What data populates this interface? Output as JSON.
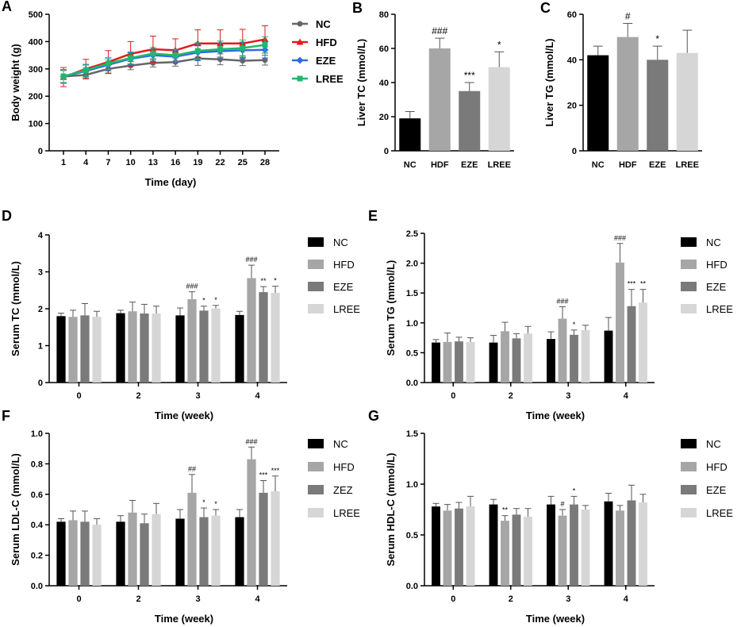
{
  "figure": {
    "panels": [
      "A",
      "B",
      "C",
      "D",
      "E",
      "F",
      "G"
    ]
  },
  "colors": {
    "NC": "#000000",
    "HFD": "#a6a6a6",
    "EZE": "#7a7a7a",
    "LREE": "#d6d6d6",
    "A_NC": "#666666",
    "A_HFD": "#e31a1c",
    "A_EZE": "#2e6be6",
    "A_LREE": "#1fb86b"
  },
  "chart_data": [
    {
      "id": "A",
      "type": "line",
      "panel_letter": "A",
      "xlabel": "Time (day)",
      "ylabel": "Body weight (g)",
      "x": [
        1,
        4,
        7,
        10,
        13,
        16,
        19,
        22,
        25,
        28
      ],
      "yticks": [
        0,
        100,
        200,
        300,
        400,
        500
      ],
      "ylim": [
        0,
        500
      ],
      "series": [
        {
          "name": "NC",
          "color": "#666666",
          "marker": "circle",
          "values": [
            272,
            278,
            300,
            312,
            322,
            325,
            338,
            335,
            330,
            332
          ],
          "errors": [
            22,
            15,
            15,
            15,
            15,
            15,
            25,
            20,
            18,
            18
          ]
        },
        {
          "name": "HFD",
          "color": "#e31a1c",
          "marker": "triangle",
          "values": [
            270,
            300,
            325,
            355,
            372,
            368,
            393,
            393,
            393,
            408
          ],
          "errors": [
            35,
            35,
            42,
            45,
            48,
            42,
            50,
            50,
            52,
            50
          ]
        },
        {
          "name": "EZE",
          "color": "#2e6be6",
          "marker": "diamond",
          "values": [
            272,
            292,
            315,
            337,
            350,
            345,
            360,
            365,
            368,
            370
          ],
          "errors": [
            25,
            22,
            22,
            22,
            22,
            22,
            30,
            30,
            30,
            30
          ]
        },
        {
          "name": "LREE",
          "color": "#1fb86b",
          "marker": "square",
          "values": [
            273,
            295,
            320,
            340,
            356,
            350,
            366,
            372,
            376,
            388
          ],
          "errors": [
            25,
            22,
            22,
            22,
            22,
            22,
            30,
            30,
            30,
            30
          ]
        }
      ],
      "legend": [
        "NC",
        "HFD",
        "EZE",
        "LREE"
      ]
    },
    {
      "id": "B",
      "type": "bar",
      "panel_letter": "B",
      "ylabel": "Liver TC (mmol/L)",
      "categories": [
        "NC",
        "HDF",
        "EZE",
        "LREE"
      ],
      "values": [
        19,
        60,
        35,
        49
      ],
      "errors": [
        4,
        6,
        5,
        9
      ],
      "annotations": [
        "",
        "###",
        "***",
        "*"
      ],
      "yticks": [
        0,
        20,
        40,
        60,
        80
      ],
      "ylim": [
        0,
        80
      ]
    },
    {
      "id": "C",
      "type": "bar",
      "panel_letter": "C",
      "ylabel": "Liver TG (mmol/L)",
      "categories": [
        "NC",
        "HDF",
        "EZE",
        "LREE"
      ],
      "values": [
        42,
        50,
        40,
        43
      ],
      "errors": [
        4,
        6,
        6,
        10
      ],
      "annotations": [
        "",
        "#",
        "*",
        ""
      ],
      "yticks": [
        0,
        20,
        40,
        60
      ],
      "ylim": [
        0,
        60
      ]
    },
    {
      "id": "D",
      "type": "bar",
      "panel_letter": "D",
      "xlabel": "Time (week)",
      "ylabel": "Serum TC (mmol/L)",
      "categories": [
        "0",
        "2",
        "3",
        "4"
      ],
      "legend": [
        "NC",
        "HFD",
        "EZE",
        "LREE"
      ],
      "series": [
        {
          "name": "NC",
          "values": [
            1.8,
            1.88,
            1.82,
            1.83
          ],
          "errors": [
            0.08,
            0.08,
            0.2,
            0.1
          ],
          "annotations": [
            "",
            "",
            "",
            ""
          ]
        },
        {
          "name": "HFD",
          "values": [
            1.78,
            1.93,
            2.26,
            2.83
          ],
          "errors": [
            0.18,
            0.25,
            0.2,
            0.35
          ],
          "annotations": [
            "",
            "",
            "###",
            "###"
          ]
        },
        {
          "name": "EZE",
          "values": [
            1.82,
            1.87,
            1.95,
            2.45
          ],
          "errors": [
            0.32,
            0.25,
            0.12,
            0.15
          ],
          "annotations": [
            "",
            "",
            "*",
            "**"
          ]
        },
        {
          "name": "LREE",
          "values": [
            1.78,
            1.87,
            2.01,
            2.43
          ],
          "errors": [
            0.15,
            0.2,
            0.08,
            0.18
          ],
          "annotations": [
            "",
            "",
            "*",
            "*"
          ]
        }
      ],
      "yticks": [
        0,
        1,
        2,
        3,
        4
      ],
      "ylim": [
        0,
        4
      ]
    },
    {
      "id": "E",
      "type": "bar",
      "panel_letter": "E",
      "xlabel": "Time (week)",
      "ylabel": "Serum TG (mmol/L)",
      "categories": [
        "0",
        "2",
        "3",
        "4"
      ],
      "legend": [
        "NC",
        "HFD",
        "EZE",
        "LREE"
      ],
      "series": [
        {
          "name": "NC",
          "values": [
            0.67,
            0.67,
            0.73,
            0.87
          ],
          "errors": [
            0.05,
            0.12,
            0.12,
            0.22
          ],
          "annotations": [
            "",
            "",
            "",
            ""
          ]
        },
        {
          "name": "HFD",
          "values": [
            0.68,
            0.86,
            1.07,
            2.01
          ],
          "errors": [
            0.15,
            0.15,
            0.2,
            0.32
          ],
          "annotations": [
            "",
            "",
            "###",
            "###"
          ]
        },
        {
          "name": "EZE",
          "values": [
            0.69,
            0.74,
            0.8,
            1.28
          ],
          "errors": [
            0.07,
            0.08,
            0.08,
            0.28
          ],
          "annotations": [
            "",
            "",
            "*",
            "***"
          ]
        },
        {
          "name": "LREE",
          "values": [
            0.68,
            0.82,
            0.88,
            1.34
          ],
          "errors": [
            0.07,
            0.12,
            0.08,
            0.22
          ],
          "annotations": [
            "",
            "",
            "",
            "**"
          ]
        }
      ],
      "yticks": [
        0.0,
        0.5,
        1.0,
        1.5,
        2.0,
        2.5
      ],
      "ylim": [
        0,
        2.5
      ]
    },
    {
      "id": "F",
      "type": "bar",
      "panel_letter": "F",
      "xlabel": "Time (week)",
      "ylabel": "Serum LDL-C (mmol/L)",
      "categories": [
        "0",
        "2",
        "3",
        "4"
      ],
      "legend": [
        "NC",
        "HFD",
        "ZEZ",
        "LREE"
      ],
      "series": [
        {
          "name": "NC",
          "values": [
            0.42,
            0.42,
            0.44,
            0.45
          ],
          "errors": [
            0.02,
            0.04,
            0.06,
            0.05
          ],
          "annotations": [
            "",
            "",
            "",
            ""
          ]
        },
        {
          "name": "HFD",
          "values": [
            0.43,
            0.48,
            0.61,
            0.83
          ],
          "errors": [
            0.06,
            0.08,
            0.12,
            0.08
          ],
          "annotations": [
            "",
            "",
            "##",
            "###"
          ]
        },
        {
          "name": "ZEZ",
          "values": [
            0.42,
            0.41,
            0.45,
            0.61
          ],
          "errors": [
            0.07,
            0.06,
            0.06,
            0.08
          ],
          "annotations": [
            "",
            "",
            "*",
            "***"
          ]
        },
        {
          "name": "LREE",
          "values": [
            0.4,
            0.47,
            0.46,
            0.62
          ],
          "errors": [
            0.04,
            0.07,
            0.04,
            0.1
          ],
          "annotations": [
            "",
            "",
            "*",
            "***"
          ]
        }
      ],
      "yticks": [
        0.0,
        0.2,
        0.4,
        0.6,
        0.8,
        1.0
      ],
      "ylim": [
        0,
        1.0
      ]
    },
    {
      "id": "G",
      "type": "bar",
      "panel_letter": "G",
      "xlabel": "Time (week)",
      "ylabel": "Serum HDL-C (mmol/L)",
      "categories": [
        "0",
        "2",
        "3",
        "4"
      ],
      "legend": [
        "NC",
        "HFD",
        "EZE",
        "LREE"
      ],
      "series": [
        {
          "name": "NC",
          "values": [
            0.78,
            0.8,
            0.8,
            0.83
          ],
          "errors": [
            0.03,
            0.05,
            0.08,
            0.08
          ],
          "annotations": [
            "",
            "",
            "",
            ""
          ]
        },
        {
          "name": "HFD",
          "values": [
            0.74,
            0.64,
            0.69,
            0.74
          ],
          "errors": [
            0.06,
            0.05,
            0.06,
            0.05
          ],
          "annotations": [
            "",
            "**",
            "#",
            ""
          ]
        },
        {
          "name": "EZE",
          "values": [
            0.76,
            0.7,
            0.8,
            0.84
          ],
          "errors": [
            0.06,
            0.06,
            0.08,
            0.15
          ],
          "annotations": [
            "",
            "",
            "*",
            ""
          ]
        },
        {
          "name": "LREE",
          "values": [
            0.78,
            0.68,
            0.75,
            0.82
          ],
          "errors": [
            0.1,
            0.08,
            0.04,
            0.08
          ],
          "annotations": [
            "",
            "",
            "",
            ""
          ]
        }
      ],
      "yticks": [
        0.0,
        0.5,
        1.0,
        1.5
      ],
      "ylim": [
        0,
        1.5
      ]
    }
  ]
}
